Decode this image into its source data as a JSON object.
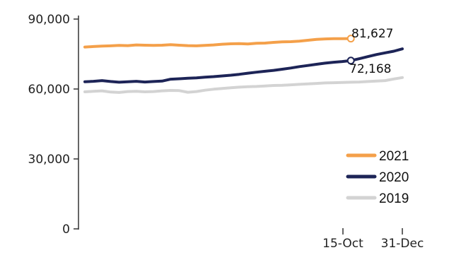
{
  "chart_data": {
    "type": "line",
    "title": "",
    "xlabel": "",
    "ylabel": "",
    "x_tick_labels": [
      "15-Oct",
      "31-Dec"
    ],
    "y_tick_labels": [
      "0",
      "30,000",
      "60,000",
      "90,000"
    ],
    "ylim": [
      0,
      90000
    ],
    "grid": false,
    "legend_position": "bottom-right",
    "highlight_labels": [
      "81,627",
      "72,168"
    ],
    "series": [
      {
        "name": "2021",
        "color": "#f4a04a",
        "end_marker": true,
        "y": [
          78000,
          78200,
          78400,
          78500,
          78700,
          78600,
          78900,
          78800,
          78700,
          78800,
          79000,
          78800,
          78600,
          78500,
          78700,
          78900,
          79200,
          79400,
          79500,
          79300,
          79600,
          79700,
          80000,
          80200,
          80300,
          80500,
          80900,
          81300,
          81500,
          81600,
          81600,
          81627
        ]
      },
      {
        "name": "2020",
        "color": "#1d2457",
        "end_marker": true,
        "y": [
          63100,
          63300,
          63600,
          63200,
          62900,
          63100,
          63300,
          63000,
          63200,
          63400,
          64200,
          64400,
          64600,
          64800,
          65100,
          65300,
          65600,
          65900,
          66300,
          66800,
          67200,
          67600,
          68000,
          68500,
          69000,
          69600,
          70100,
          70600,
          71100,
          71500,
          71800,
          72168,
          73000,
          73900,
          74800,
          75500,
          76200,
          77200
        ]
      },
      {
        "name": "2019",
        "color": "#d3d3d3",
        "end_marker": false,
        "y": [
          58800,
          59000,
          59200,
          58700,
          58500,
          58900,
          59000,
          58800,
          58900,
          59200,
          59400,
          59300,
          58600,
          58900,
          59500,
          59900,
          60200,
          60500,
          60800,
          61000,
          61100,
          61300,
          61500,
          61600,
          61800,
          62000,
          62200,
          62400,
          62600,
          62700,
          62800,
          62900,
          63000,
          63200,
          63400,
          63600,
          64300,
          64900
        ]
      }
    ],
    "legend": [
      {
        "label": "2021",
        "color": "#f4a04a"
      },
      {
        "label": "2020",
        "color": "#1d2457"
      },
      {
        "label": "2019",
        "color": "#d3d3d3"
      }
    ]
  }
}
